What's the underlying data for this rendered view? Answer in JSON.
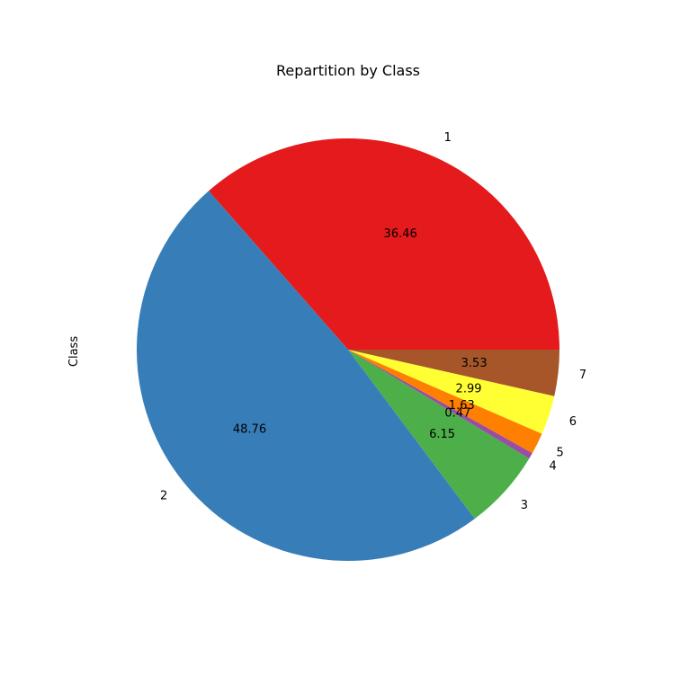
{
  "chart_data": {
    "type": "pie",
    "title": "Repartition by Class",
    "ylabel": "Class",
    "categories": [
      "1",
      "2",
      "3",
      "4",
      "5",
      "6",
      "7"
    ],
    "values": [
      36.46,
      48.76,
      6.15,
      0.47,
      1.63,
      2.99,
      3.53
    ],
    "value_labels": [
      "36.46",
      "48.76",
      "6.15",
      "0.47",
      "1.63",
      "2.99",
      "3.53"
    ],
    "start_angle_deg": 0,
    "direction": "counterclockwise",
    "colors": [
      "#e41a1c",
      "#377eb8",
      "#4daf4a",
      "#984ea3",
      "#ff7f00",
      "#ffff33",
      "#a65628"
    ]
  }
}
